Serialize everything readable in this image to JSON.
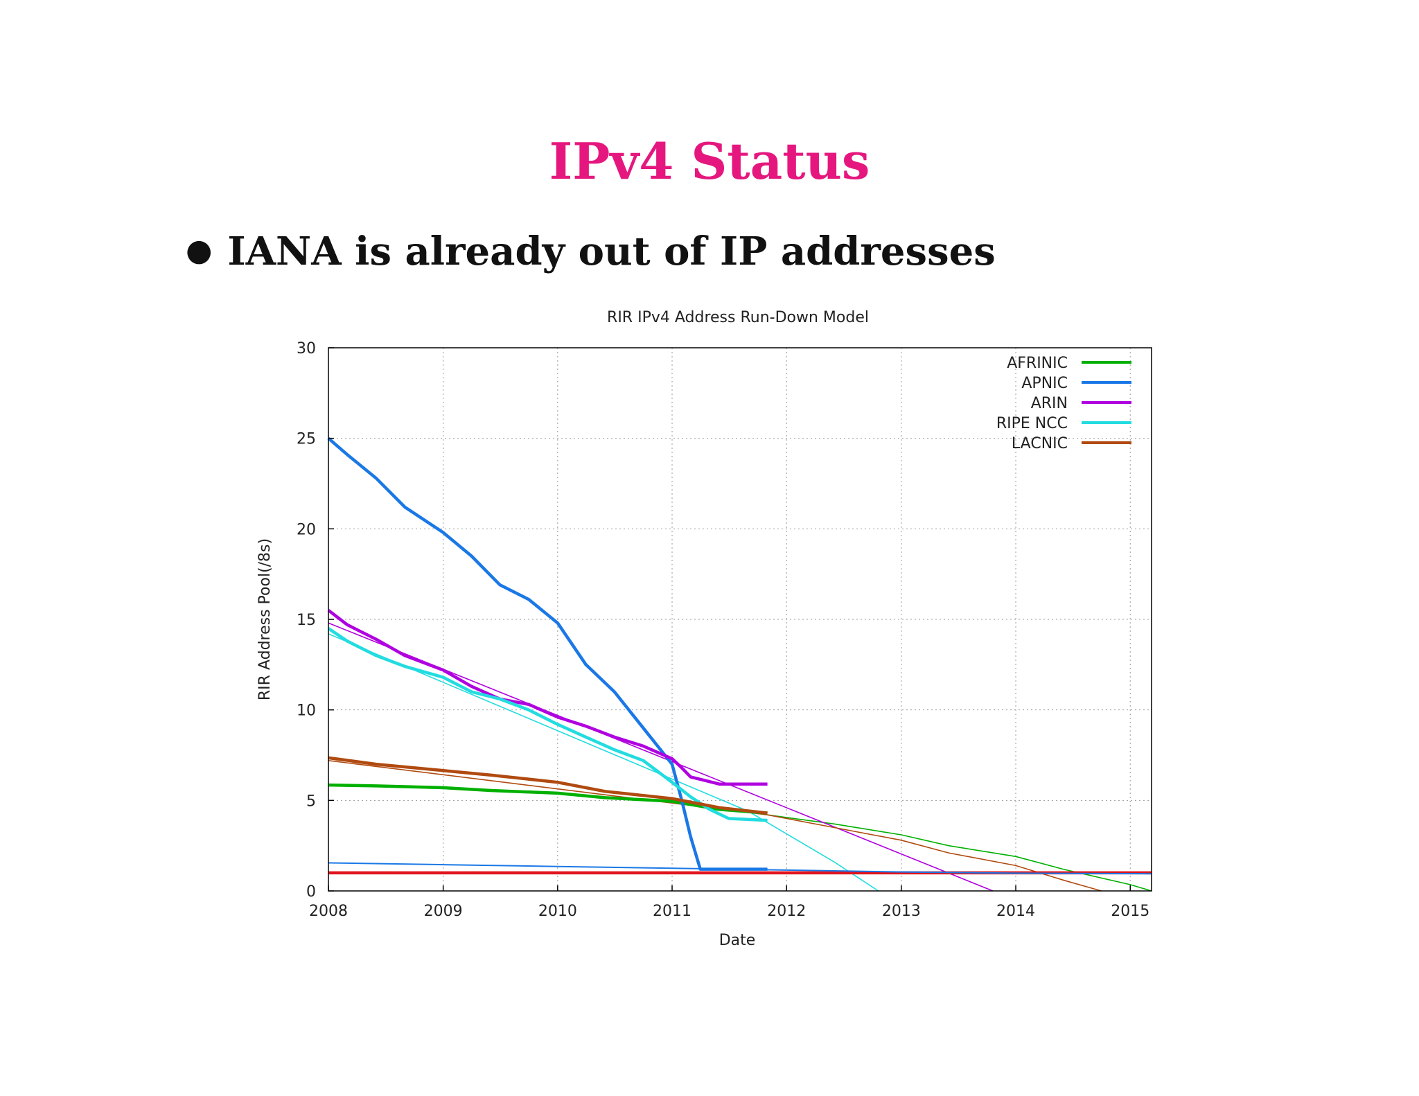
{
  "slide": {
    "title": "IPv4 Status",
    "bullet": "IANA is already out of IP addresses",
    "title_color": "#e5177f"
  },
  "chart_data": {
    "type": "line",
    "title": "RIR IPv4 Address Run-Down Model",
    "xlabel": "Date",
    "ylabel": "RIR Address Pool(/8s)",
    "xlim": [
      "2008-01-01",
      "2015-03-10"
    ],
    "ylim": [
      0,
      30
    ],
    "x_ticks": [
      "2008",
      "2009",
      "2010",
      "2011",
      "2012",
      "2013",
      "2014",
      "2015"
    ],
    "y_ticks": [
      0,
      5,
      10,
      15,
      20,
      25,
      30
    ],
    "grid": true,
    "legend_position": "top-right",
    "series": [
      {
        "name": "AFRINIC",
        "color": "#00b000",
        "x": [
          "2008-01-01",
          "2008-06-01",
          "2009-01-01",
          "2009-06-01",
          "2010-01-01",
          "2010-06-01",
          "2011-01-01",
          "2011-06-01",
          "2011-11-01"
        ],
        "values": [
          5.85,
          5.8,
          5.7,
          5.55,
          5.4,
          5.15,
          4.95,
          4.5,
          4.3
        ],
        "projection": {
          "x": [
            "2011-11-01",
            "2012-06-01",
            "2013-01-01",
            "2013-06-01",
            "2014-01-01",
            "2014-06-01",
            "2015-01-01",
            "2015-03-10"
          ],
          "values": [
            4.2,
            3.7,
            3.1,
            2.5,
            1.9,
            1.2,
            0.35,
            0.0
          ]
        }
      },
      {
        "name": "APNIC",
        "color": "#1a78e6",
        "x": [
          "2008-01-01",
          "2008-03-01",
          "2008-06-01",
          "2008-09-01",
          "2009-01-01",
          "2009-04-01",
          "2009-07-01",
          "2009-10-01",
          "2010-01-01",
          "2010-04-01",
          "2010-07-01",
          "2010-10-01",
          "2011-01-01",
          "2011-02-01",
          "2011-03-01",
          "2011-04-01",
          "2011-06-01",
          "2011-11-01"
        ],
        "values": [
          25.0,
          24.1,
          22.8,
          21.2,
          19.8,
          18.5,
          16.9,
          16.1,
          14.8,
          12.5,
          11.0,
          9.0,
          7.0,
          5.0,
          3.0,
          1.2,
          1.2,
          1.2
        ]
      },
      {
        "name": "ARIN",
        "color": "#b000e0",
        "x": [
          "2008-01-01",
          "2008-03-01",
          "2008-06-01",
          "2008-09-01",
          "2009-01-01",
          "2009-04-01",
          "2009-07-01",
          "2009-10-01",
          "2010-01-01",
          "2010-04-01",
          "2010-07-01",
          "2010-10-01",
          "2011-01-01",
          "2011-02-01",
          "2011-03-01",
          "2011-06-01",
          "2011-11-01"
        ],
        "values": [
          15.5,
          14.7,
          13.9,
          13.0,
          12.2,
          11.3,
          10.6,
          10.3,
          9.6,
          9.1,
          8.5,
          8.0,
          7.3,
          6.8,
          6.3,
          5.9,
          5.9
        ],
        "projection": {
          "x": [
            "2008-01-01",
            "2013-10-20"
          ],
          "values": [
            14.8,
            0.0
          ]
        }
      },
      {
        "name": "RIPE NCC",
        "color": "#22dce0",
        "x": [
          "2008-01-01",
          "2008-03-01",
          "2008-06-01",
          "2008-09-01",
          "2009-01-01",
          "2009-04-01",
          "2009-07-01",
          "2009-10-01",
          "2010-01-01",
          "2010-04-01",
          "2010-07-01",
          "2010-10-01",
          "2011-01-01",
          "2011-03-01",
          "2011-05-01",
          "2011-07-01",
          "2011-11-01"
        ],
        "values": [
          14.5,
          13.8,
          13.0,
          12.4,
          11.8,
          11.0,
          10.6,
          10.0,
          9.2,
          8.5,
          7.8,
          7.2,
          6.0,
          5.2,
          4.5,
          4.0,
          3.9
        ],
        "projection": {
          "x": [
            "2008-01-01",
            "2011-09-01",
            "2012-06-01",
            "2012-10-20"
          ],
          "values": [
            14.2,
            4.4,
            1.6,
            0.0
          ]
        }
      },
      {
        "name": "LACNIC",
        "color": "#b04a10",
        "x": [
          "2008-01-01",
          "2008-06-01",
          "2009-01-01",
          "2009-06-01",
          "2010-01-01",
          "2010-06-01",
          "2011-01-01",
          "2011-06-01",
          "2011-11-01"
        ],
        "values": [
          7.35,
          7.0,
          6.65,
          6.4,
          6.0,
          5.5,
          5.1,
          4.6,
          4.3
        ],
        "projection": {
          "x": [
            "2008-01-01",
            "2011-11-01",
            "2012-06-01",
            "2013-01-01",
            "2013-06-01",
            "2014-01-01",
            "2014-06-01",
            "2014-10-01"
          ],
          "values": [
            7.2,
            4.2,
            3.5,
            2.8,
            2.1,
            1.4,
            0.6,
            0.0
          ]
        }
      }
    ],
    "reference_lines": [
      {
        "color": "#e0141c",
        "x": [
          "2008-01-01",
          "2015-03-10"
        ],
        "values": [
          1.0,
          1.0
        ]
      },
      {
        "color": "#1a78e6",
        "x": [
          "2008-01-01",
          "2009-01-01",
          "2010-01-01",
          "2011-01-01",
          "2012-01-01",
          "2013-01-01",
          "2014-01-01",
          "2015-03-10"
        ],
        "values": [
          1.55,
          1.45,
          1.35,
          1.25,
          1.15,
          1.05,
          0.98,
          0.95
        ]
      }
    ]
  }
}
